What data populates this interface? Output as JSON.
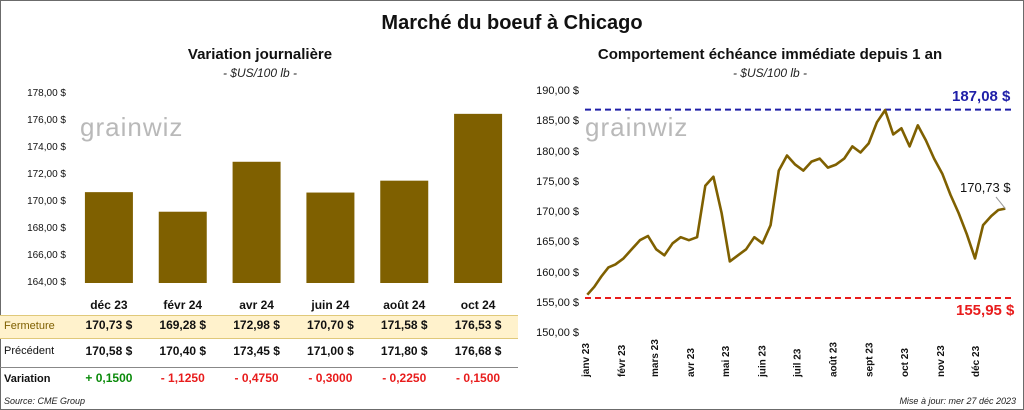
{
  "title": "Marché du boeuf à Chicago",
  "left_panel": {
    "title": "Variation  journalière",
    "unit": "- $US/100 lb -",
    "watermark": "grainwiz",
    "table": {
      "labels": [
        "Fermeture",
        "Précédent",
        "Variation"
      ],
      "fermeture": [
        "170,73 $",
        "169,28 $",
        "172,98 $",
        "170,70 $",
        "171,58 $",
        "176,53 $"
      ],
      "precedent": [
        "170,58 $",
        "170,40 $",
        "173,45 $",
        "171,00 $",
        "171,80 $",
        "176,68 $"
      ],
      "variation": [
        "+ 0,1500",
        "- 1,1250",
        "- 0,4750",
        "- 0,3000",
        "- 0,2250",
        "- 0,1500"
      ]
    }
  },
  "right_panel": {
    "title": "Comportement  échéance immédiate depuis 1 an",
    "unit": "- $US/100 lb -",
    "watermark": "grainwiz",
    "high_label": "187,08 $",
    "low_label": "155,95 $",
    "last_label": "170,73 $"
  },
  "footer": {
    "source": "Source: CME Group",
    "updated": "Mise à jour: mer 27 déc 2023"
  },
  "colors": {
    "bar": "#7f6000",
    "table_highlight": "#fff2cc",
    "high_line": "#1f1fa8",
    "low_line": "#e81c1c",
    "positive": "#0a8a0a",
    "negative": "#e81c1c"
  },
  "chart_data": [
    {
      "type": "bar",
      "categories": [
        "déc 23",
        "févr 24",
        "avr 24",
        "juin 24",
        "août 24",
        "oct 24"
      ],
      "values": [
        170.73,
        169.28,
        172.98,
        170.7,
        171.58,
        176.53
      ],
      "ylim": [
        164,
        178
      ],
      "yticks": [
        "164,00 $",
        "166,00 $",
        "168,00 $",
        "170,00 $",
        "172,00 $",
        "174,00 $",
        "176,00 $",
        "178,00 $"
      ],
      "grid": false
    },
    {
      "type": "line",
      "ylim": [
        150,
        190
      ],
      "yticks": [
        "150,00 $",
        "155,00 $",
        "160,00 $",
        "165,00 $",
        "170,00 $",
        "175,00 $",
        "180,00 $",
        "185,00 $",
        "190,00 $"
      ],
      "xticks": [
        "janv 23",
        "févr 23",
        "mars 23",
        "avr 23",
        "mai 23",
        "juin 23",
        "juil 23",
        "août 23",
        "sept 23",
        "oct 23",
        "nov 23",
        "déc 23"
      ],
      "reference_lines": [
        187.08,
        155.95
      ],
      "last_value": 170.73,
      "grid": false,
      "x": [
        "2023-01-03",
        "2023-01-09",
        "2023-01-15",
        "2023-01-21",
        "2023-01-27",
        "2023-02-03",
        "2023-02-10",
        "2023-02-17",
        "2023-02-24",
        "2023-03-03",
        "2023-03-10",
        "2023-03-17",
        "2023-03-24",
        "2023-03-31",
        "2023-04-07",
        "2023-04-14",
        "2023-04-21",
        "2023-04-28",
        "2023-05-05",
        "2023-05-12",
        "2023-05-19",
        "2023-05-26",
        "2023-06-02",
        "2023-06-09",
        "2023-06-16",
        "2023-06-23",
        "2023-06-30",
        "2023-07-07",
        "2023-07-14",
        "2023-07-21",
        "2023-07-28",
        "2023-08-04",
        "2023-08-11",
        "2023-08-18",
        "2023-08-25",
        "2023-09-01",
        "2023-09-08",
        "2023-09-15",
        "2023-09-22",
        "2023-09-29",
        "2023-10-06",
        "2023-10-13",
        "2023-10-20",
        "2023-10-27",
        "2023-11-03",
        "2023-11-10",
        "2023-11-17",
        "2023-11-24",
        "2023-12-01",
        "2023-12-08",
        "2023-12-15",
        "2023-12-21",
        "2023-12-27"
      ],
      "values": [
        156.5,
        157.8,
        159.5,
        161.0,
        161.5,
        162.5,
        164.0,
        165.5,
        166.2,
        164.0,
        163.0,
        165.0,
        166.0,
        165.5,
        166.0,
        174.5,
        176.0,
        170.0,
        162.0,
        163.0,
        164.0,
        166.0,
        165.0,
        168.0,
        177.0,
        179.5,
        178.0,
        177.0,
        178.5,
        179.0,
        177.5,
        178.0,
        179.0,
        181.0,
        180.0,
        181.5,
        185.0,
        187.0,
        183.0,
        184.0,
        181.0,
        184.5,
        182.0,
        179.0,
        176.5,
        173.0,
        170.0,
        166.5,
        162.5,
        168.0,
        169.5,
        170.5,
        170.73
      ]
    }
  ]
}
